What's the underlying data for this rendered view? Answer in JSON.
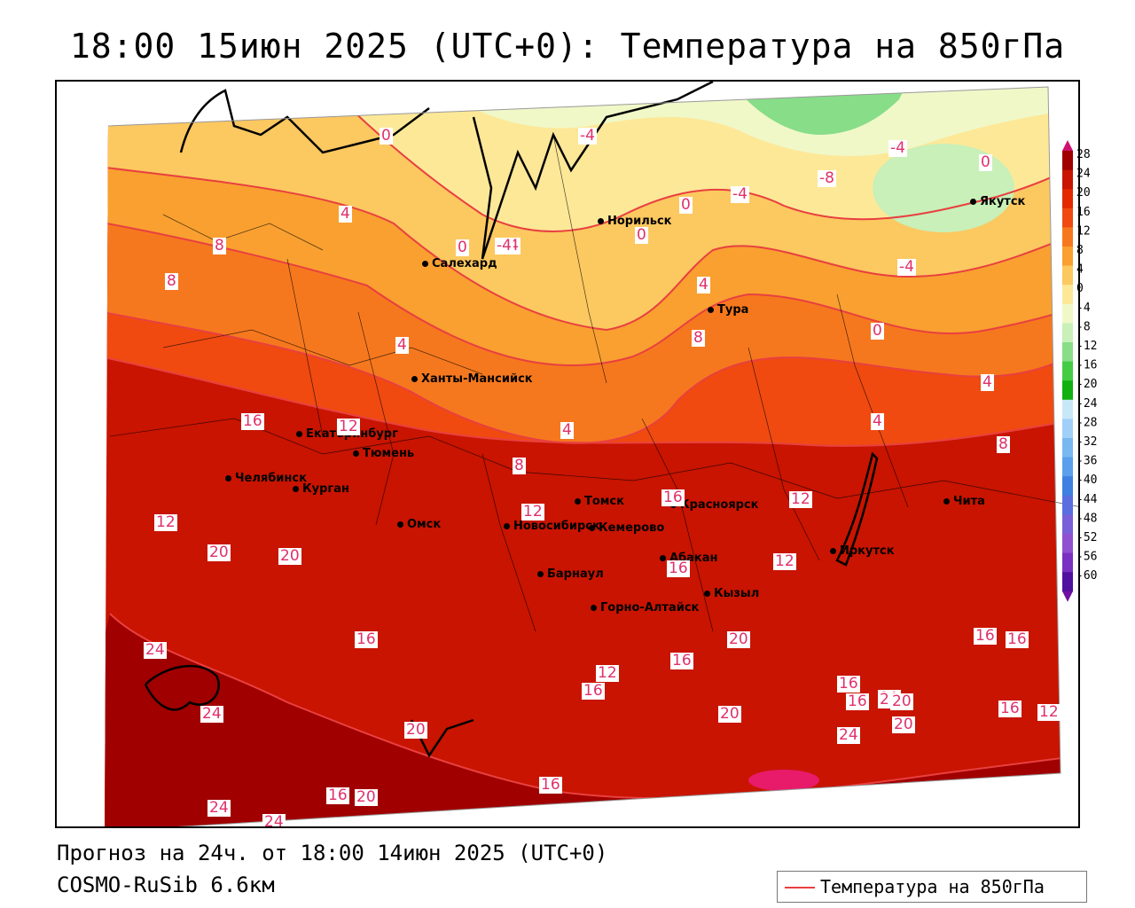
{
  "title": "18:00 15июн 2025 (UTC+0): Температура на 850гПа",
  "footer": {
    "forecast": "Прогноз на 24ч. от 18:00 14июн 2025 (UTC+0)",
    "model": "COSMO-RuSib 6.6км"
  },
  "legend": {
    "label": "Температура на 850гПа",
    "line_color": "#e84040"
  },
  "colorbar": {
    "ticks": [
      "28",
      "24",
      "20",
      "16",
      "12",
      "8",
      "4",
      "0",
      "-4",
      "-8",
      "-12",
      "-16",
      "-20",
      "-24",
      "-28",
      "-32",
      "-36",
      "-40",
      "-44",
      "-48",
      "-52",
      "-56",
      "-60"
    ],
    "colors": [
      "#a00000",
      "#c81400",
      "#e42800",
      "#f04a10",
      "#f6781e",
      "#f9a030",
      "#fcc860",
      "#fde898",
      "#f0f8c8",
      "#c8f0b8",
      "#88dd88",
      "#44cc44",
      "#10b010",
      "#c8e8f8",
      "#a0d0f8",
      "#78b8f0",
      "#5aa0ea",
      "#4080e0",
      "#5a6ee0",
      "#7a60d8",
      "#9050d0",
      "#7a30c0",
      "#5010a0"
    ]
  },
  "cities": [
    {
      "name": "Норильск"
    },
    {
      "name": "Якутск"
    },
    {
      "name": "Салехард"
    },
    {
      "name": "Тура"
    },
    {
      "name": "Ханты-Мансийск"
    },
    {
      "name": "Екатеринбург"
    },
    {
      "name": "Тюмень"
    },
    {
      "name": "Челябинск"
    },
    {
      "name": "Курган"
    },
    {
      "name": "Омск"
    },
    {
      "name": "Новосибирск"
    },
    {
      "name": "Томск"
    },
    {
      "name": "Кемерово"
    },
    {
      "name": "Красноярск"
    },
    {
      "name": "Абакан"
    },
    {
      "name": "Барнаул"
    },
    {
      "name": "Горно-Алтайск"
    },
    {
      "name": "Кызыл"
    },
    {
      "name": "Иркутск"
    },
    {
      "name": "Чита"
    }
  ],
  "contour_labels": [
    "0",
    "-4",
    "0",
    "-8",
    "-4",
    "0",
    "-4",
    "4",
    "8",
    "8",
    "0",
    "-4",
    "4",
    "-4",
    "0",
    "4",
    "8",
    "0",
    "4",
    "8",
    "-4",
    "4",
    "16",
    "12",
    "4",
    "8",
    "16",
    "12",
    "12",
    "20",
    "20",
    "12",
    "16",
    "12",
    "24",
    "16",
    "24",
    "20",
    "16",
    "12",
    "16",
    "16",
    "20",
    "16",
    "20",
    "20",
    "20",
    "20",
    "24",
    "24",
    "16",
    "16",
    "12",
    "20",
    "16",
    "24",
    "16",
    "16",
    "20",
    "12"
  ]
}
